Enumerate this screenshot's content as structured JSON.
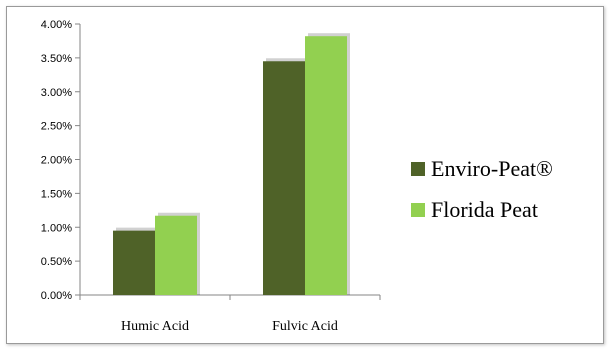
{
  "chart_data": {
    "type": "bar",
    "categories": [
      "Humic Acid",
      "Fulvic Acid"
    ],
    "series": [
      {
        "name": "Enviro-Peat®",
        "values": [
          0.95,
          3.45
        ],
        "color": "#4f6228"
      },
      {
        "name": "Florida Peat",
        "values": [
          1.17,
          3.82
        ],
        "color": "#92d050"
      }
    ],
    "ylim": [
      0,
      4
    ],
    "yticks": [
      0,
      0.5,
      1.0,
      1.5,
      2.0,
      2.5,
      3.0,
      3.5,
      4.0
    ],
    "ytick_labels": [
      "0.00%",
      "0.50%",
      "1.00%",
      "1.50%",
      "2.00%",
      "2.50%",
      "3.00%",
      "3.50%",
      "4.00%"
    ],
    "legend_position": "right",
    "grid": false,
    "title": "",
    "xlabel": "",
    "ylabel": ""
  }
}
